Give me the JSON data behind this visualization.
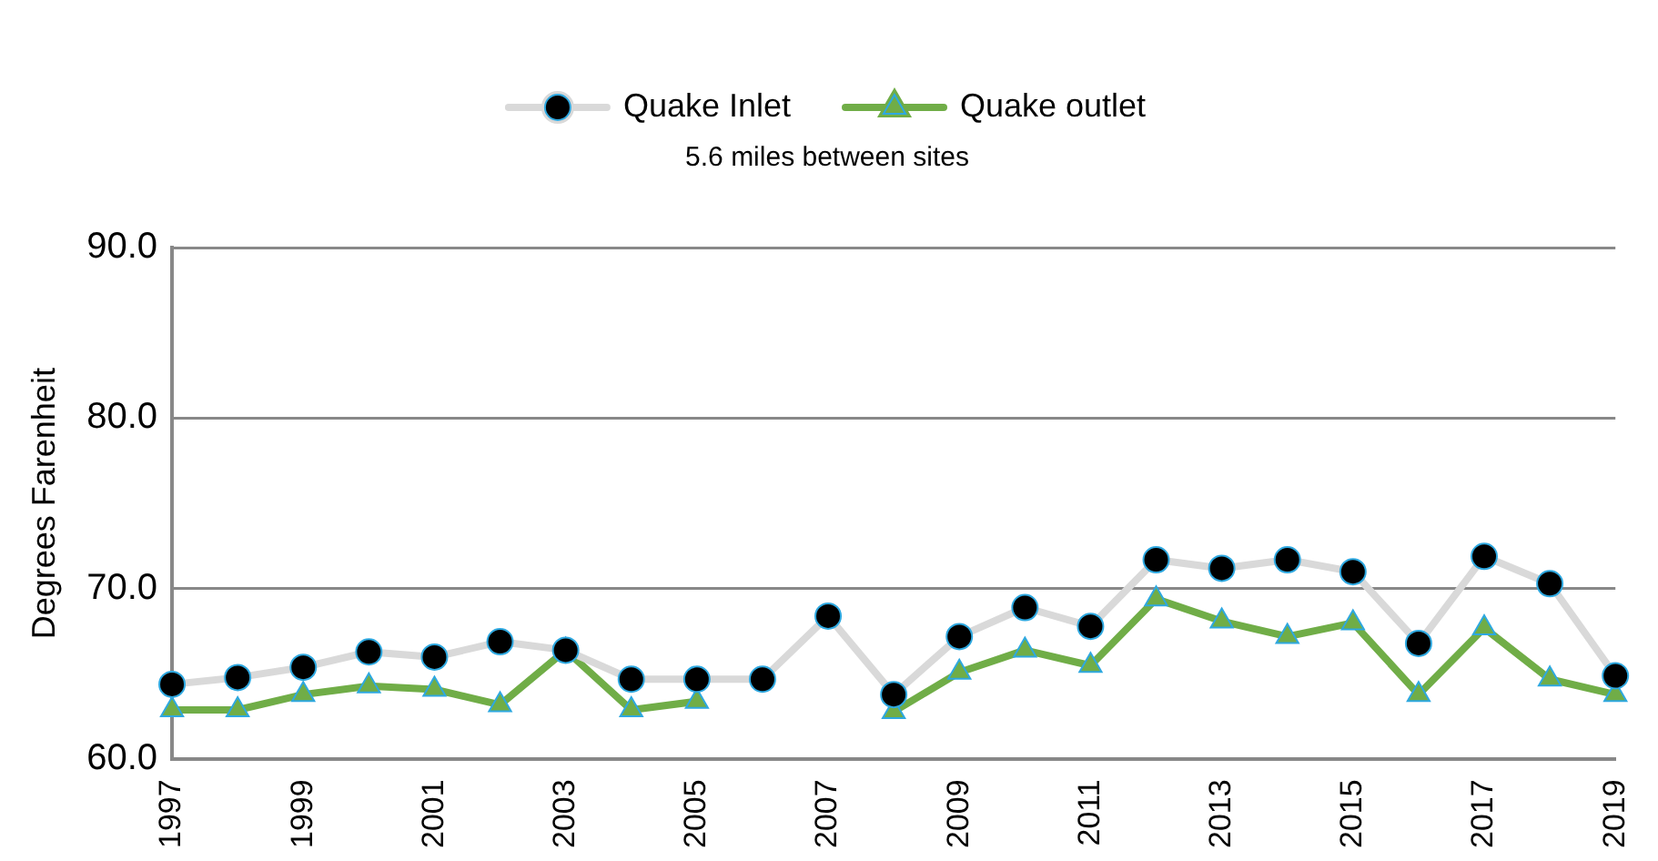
{
  "chart_data": {
    "type": "line",
    "subtitle": "5.6 miles between sites",
    "ylabel": "Degrees Farenheit",
    "categories": [
      "1997",
      null,
      "1999",
      null,
      "2001",
      null,
      "2003",
      null,
      "2005",
      null,
      "2007",
      null,
      "2009",
      null,
      "2011",
      null,
      "2013",
      null,
      "2015",
      null,
      "2017",
      null,
      "2019"
    ],
    "series": [
      {
        "name": "Quake Inlet",
        "color": "#d9d9d9",
        "marker": "circle",
        "values": [
          64.4,
          64.8,
          65.4,
          66.3,
          66.0,
          66.9,
          66.4,
          64.7,
          64.7,
          64.7,
          68.4,
          63.8,
          67.2,
          68.9,
          67.8,
          71.7,
          71.2,
          71.7,
          71.0,
          66.8,
          71.9,
          70.3,
          64.9
        ]
      },
      {
        "name": "Quake outlet",
        "color": "#70ad47",
        "marker": "triangle",
        "values": [
          62.9,
          62.9,
          63.8,
          64.3,
          64.1,
          63.2,
          66.4,
          62.9,
          63.4,
          null,
          null,
          62.8,
          65.1,
          66.4,
          65.5,
          69.4,
          68.1,
          67.2,
          68.0,
          63.8,
          67.7,
          64.7,
          63.8
        ]
      }
    ],
    "ylim": [
      60,
      90
    ],
    "yticks": [
      {
        "value": 60,
        "label": "60.0"
      },
      {
        "value": 70,
        "label": "70.0"
      },
      {
        "value": 80,
        "label": "80.0"
      },
      {
        "value": 90,
        "label": "90.0"
      }
    ],
    "grid": "y",
    "legend": "top"
  }
}
